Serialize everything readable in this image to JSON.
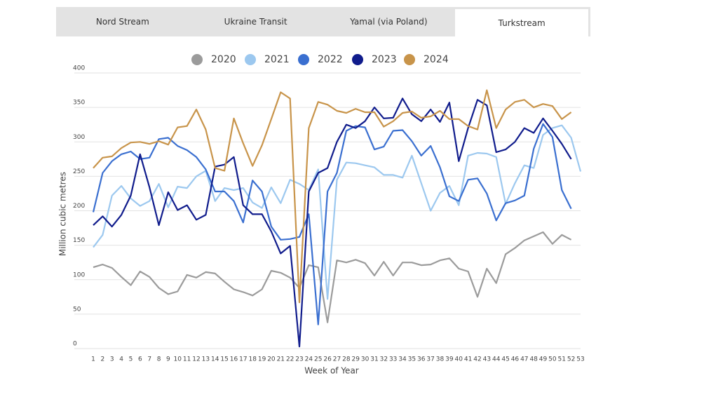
{
  "tabs": [
    "Nord Stream",
    "Ukraine Transit",
    "Yamal (via Poland)",
    "Turkstream"
  ],
  "active_tab": 3,
  "chart_data": {
    "type": "line",
    "x_label": "Week of Year",
    "y_label": "Million cubic metres",
    "x": [
      1,
      2,
      3,
      4,
      5,
      6,
      7,
      8,
      9,
      10,
      11,
      12,
      13,
      14,
      15,
      16,
      17,
      18,
      19,
      20,
      21,
      22,
      23,
      24,
      25,
      26,
      27,
      28,
      29,
      30,
      31,
      32,
      33,
      34,
      35,
      36,
      37,
      38,
      39,
      40,
      41,
      42,
      43,
      44,
      45,
      46,
      47,
      48,
      49,
      50,
      51,
      52,
      53
    ],
    "xlim": [
      1,
      53
    ],
    "xticks": [
      1,
      2,
      3,
      4,
      5,
      6,
      7,
      8,
      9,
      10,
      11,
      12,
      13,
      14,
      15,
      16,
      17,
      18,
      19,
      20,
      21,
      22,
      23,
      24,
      25,
      26,
      27,
      28,
      29,
      30,
      31,
      32,
      33,
      34,
      35,
      36,
      37,
      38,
      39,
      40,
      41,
      42,
      43,
      44,
      45,
      46,
      47,
      48,
      49,
      50,
      51,
      52,
      53
    ],
    "ylim": [
      0,
      400
    ],
    "yticks": [
      0,
      50,
      100,
      150,
      200,
      250,
      300,
      350,
      400
    ],
    "grid": true,
    "series": [
      {
        "name": "2020",
        "color": "#9b9b9b",
        "values": [
          118,
          122,
          117,
          104,
          92,
          112,
          104,
          88,
          79,
          83,
          107,
          103,
          111,
          109,
          97,
          86,
          82,
          77,
          86,
          113,
          110,
          103,
          88,
          121,
          118,
          38,
          128,
          125,
          129,
          124,
          106,
          126,
          106,
          125,
          125,
          121,
          122,
          128,
          131,
          116,
          112,
          75,
          116,
          95,
          137,
          146,
          157,
          163,
          169,
          152,
          165,
          158,
          null
        ]
      },
      {
        "name": "2021",
        "color": "#9cc8ef",
        "values": [
          147,
          165,
          222,
          236,
          218,
          207,
          214,
          239,
          205,
          235,
          233,
          250,
          258,
          214,
          233,
          230,
          233,
          212,
          204,
          234,
          211,
          245,
          239,
          230,
          260,
          72,
          245,
          270,
          269,
          266,
          263,
          252,
          252,
          248,
          280,
          240,
          200,
          226,
          236,
          208,
          280,
          284,
          283,
          278,
          210,
          240,
          266,
          262,
          310,
          320,
          324,
          306,
          257
        ]
      },
      {
        "name": "2022",
        "color": "#3a6fd0",
        "values": [
          198,
          255,
          272,
          282,
          286,
          275,
          277,
          304,
          306,
          294,
          288,
          278,
          260,
          228,
          228,
          214,
          183,
          244,
          228,
          177,
          158,
          159,
          162,
          195,
          35,
          228,
          255,
          316,
          323,
          321,
          289,
          293,
          316,
          317,
          301,
          280,
          294,
          263,
          221,
          214,
          245,
          247,
          225,
          186,
          211,
          215,
          222,
          290,
          326,
          307,
          230,
          203,
          null
        ]
      },
      {
        "name": "2023",
        "color": "#101c8c",
        "values": [
          179,
          192,
          177,
          194,
          222,
          282,
          234,
          179,
          227,
          201,
          208,
          187,
          194,
          264,
          267,
          278,
          208,
          195,
          195,
          170,
          138,
          149,
          3,
          228,
          255,
          262,
          300,
          325,
          320,
          330,
          350,
          334,
          335,
          363,
          340,
          330,
          347,
          329,
          357,
          272,
          320,
          361,
          353,
          285,
          289,
          300,
          320,
          313,
          334,
          316,
          297,
          275,
          null
        ]
      },
      {
        "name": "2024",
        "color": "#c8944a",
        "values": [
          262,
          277,
          279,
          291,
          299,
          300,
          297,
          301,
          296,
          321,
          323,
          347,
          318,
          262,
          258,
          334,
          298,
          265,
          295,
          333,
          372,
          363,
          67,
          320,
          358,
          354,
          345,
          342,
          348,
          343,
          343,
          322,
          330,
          342,
          344,
          335,
          337,
          345,
          333,
          333,
          323,
          318,
          375,
          320,
          347,
          358,
          361,
          350,
          355,
          352,
          333,
          343,
          null
        ]
      }
    ]
  }
}
